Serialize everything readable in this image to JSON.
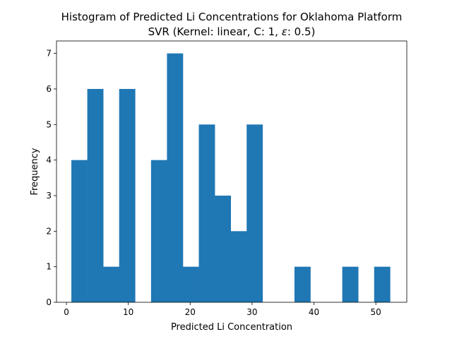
{
  "chart_data": {
    "type": "bar",
    "title": "Histogram of Predicted Li Concentrations for Oklahoma Platform",
    "subtitle_prefix": "SVR (Kernel: linear, C: 1, ",
    "subtitle_epsilon": "ε",
    "subtitle_suffix": ": 0.5)",
    "xlabel": "Predicted Li Concentration",
    "ylabel": "Frequency",
    "xlim": [
      -1.6,
      55
    ],
    "ylim": [
      0,
      7.35
    ],
    "x_ticks": [
      0,
      10,
      20,
      30,
      40,
      50
    ],
    "y_ticks": [
      0,
      1,
      2,
      3,
      4,
      5,
      6,
      7
    ],
    "bin_range": [
      0.8,
      52.3
    ],
    "bin_count": 20,
    "values": [
      4,
      6,
      1,
      6,
      0,
      4,
      7,
      1,
      5,
      3,
      2,
      5,
      0,
      0,
      1,
      0,
      0,
      1,
      0,
      1
    ],
    "bar_color": "#1f77b4",
    "grid": false,
    "legend": "none"
  }
}
